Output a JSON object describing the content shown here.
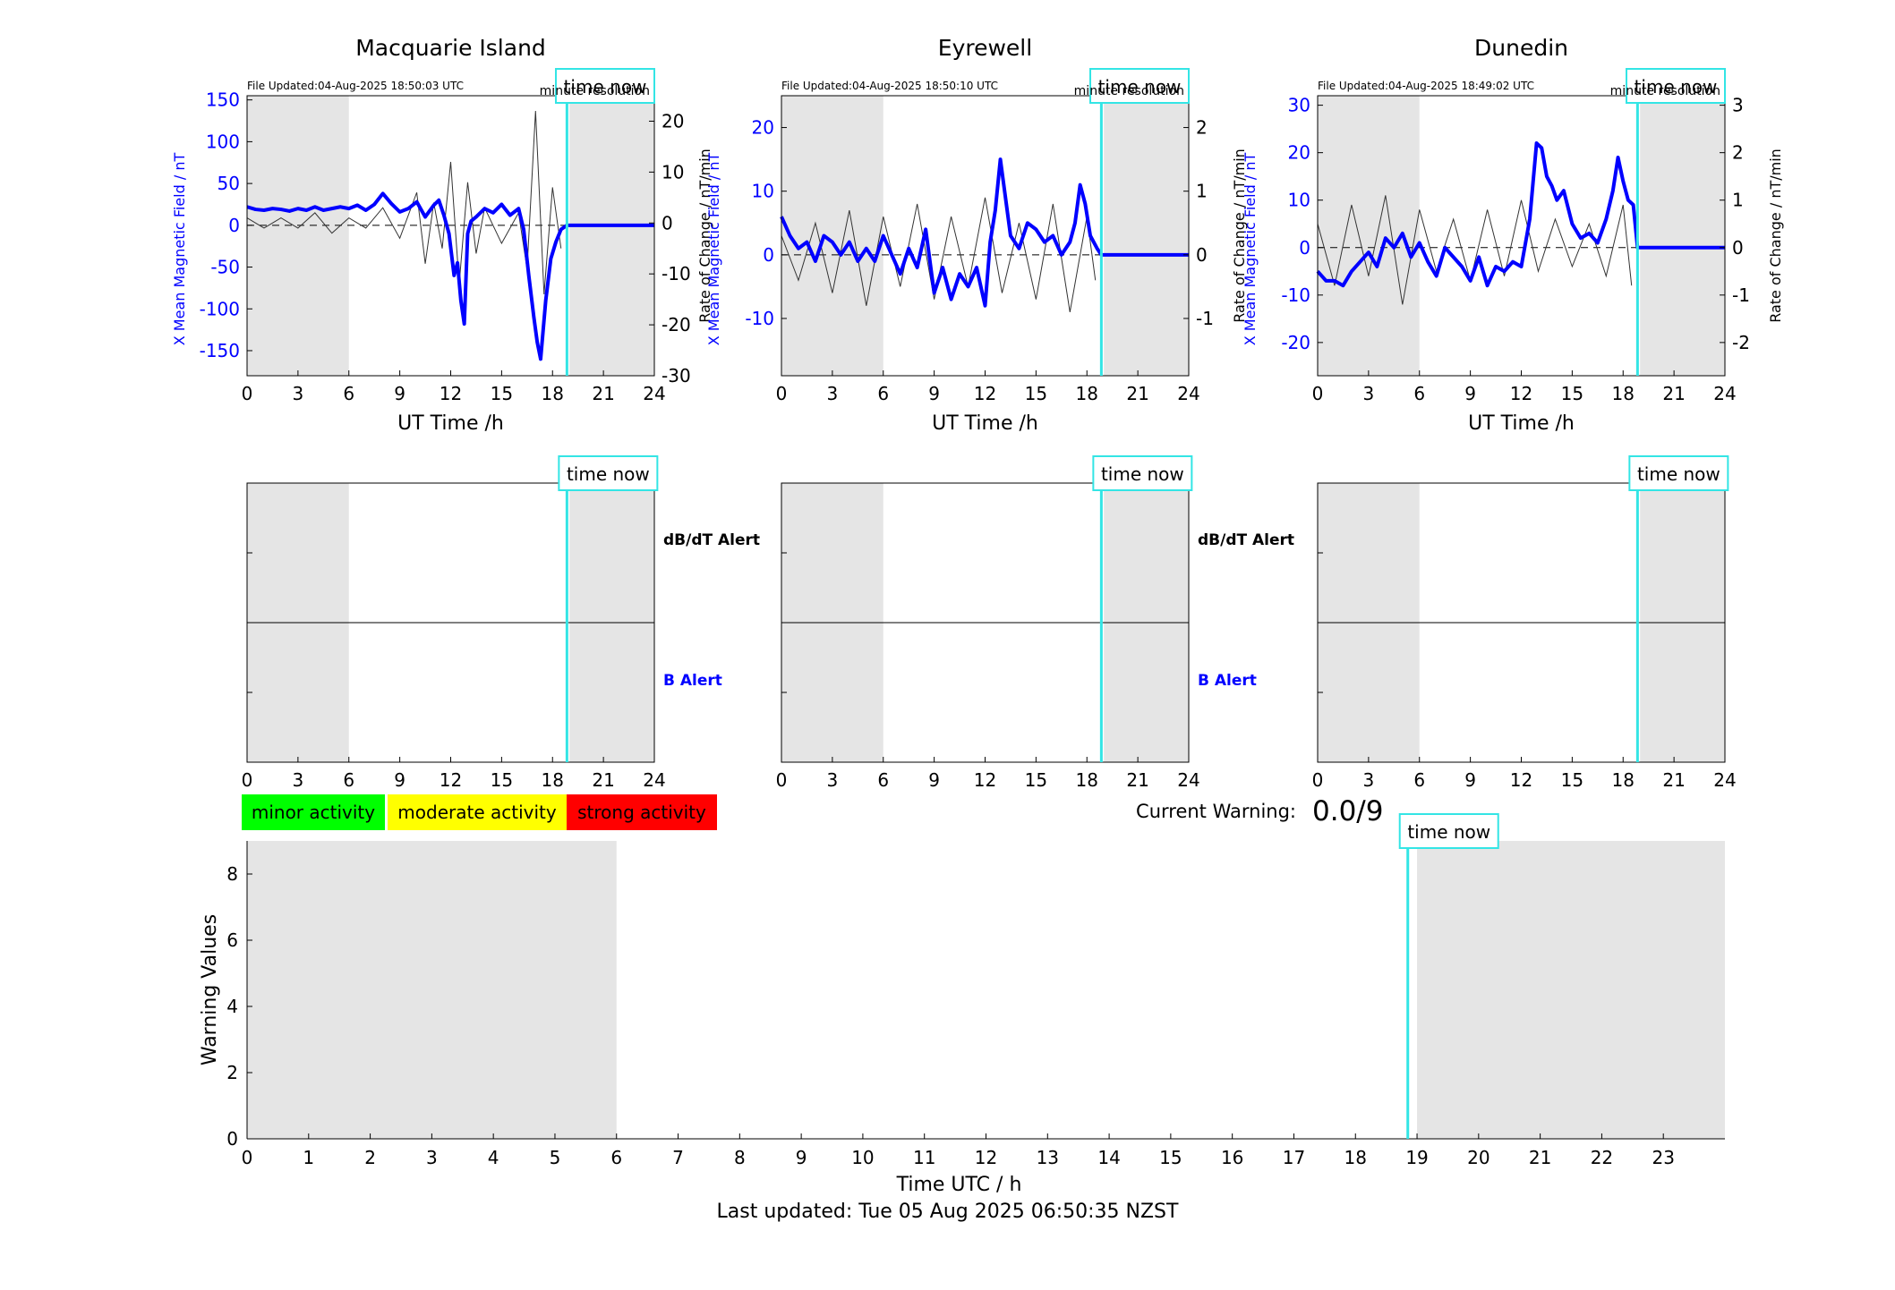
{
  "footer": {
    "last_updated": "Last updated: Tue 05 Aug 2025 06:50:35 NZST"
  },
  "colors": {
    "b_series": "#0000ff",
    "dbdt_series": "#333333",
    "now_line": "#33e5e5",
    "outside_window": "#e5e5e5",
    "minor": "#00ff00",
    "moderate": "#ffff00",
    "strong": "#ff0000"
  },
  "legend": {
    "minor": "minor activity",
    "moderate": "moderate activity",
    "strong": "strong activity"
  },
  "current_warning": {
    "label": "Current Warning:",
    "value": "0.0/9"
  },
  "time_now_label": "time now",
  "chart_data": [
    {
      "type": "line",
      "title": "Macquarie Island",
      "subtitle": "File Updated:04-Aug-2025 18:50:03 UTC",
      "note": "minute resolution",
      "xlabel": "UT Time /h",
      "ylabel": "X Mean Magnetic Field / nT",
      "y2label": "Rate of Change / nT/min",
      "xlim": [
        0,
        24
      ],
      "xticks": [
        0,
        3,
        6,
        9,
        12,
        15,
        18,
        21,
        24
      ],
      "ylim": [
        -180,
        155
      ],
      "yticks": [
        -150,
        -100,
        -50,
        0,
        50,
        100,
        150
      ],
      "y2lim": [
        -30,
        25
      ],
      "y2ticks": [
        -30,
        -20,
        -10,
        0,
        10,
        20
      ],
      "now_hour": 18.85,
      "shaded_before": 6,
      "shaded_after": 19,
      "series": [
        {
          "name": "X Mean Magnetic Field",
          "axis": "left",
          "x": [
            0,
            0.5,
            1,
            1.5,
            2,
            2.5,
            3,
            3.5,
            4,
            4.5,
            5,
            5.5,
            6,
            6.5,
            7,
            7.5,
            8,
            8.5,
            9,
            9.5,
            10,
            10.5,
            11,
            11.3,
            11.6,
            11.9,
            12.2,
            12.4,
            12.6,
            12.8,
            13.0,
            13.2,
            13.5,
            14,
            14.5,
            15,
            15.5,
            16,
            16.3,
            16.6,
            16.9,
            17.1,
            17.3,
            17.6,
            17.9,
            18.2,
            18.5,
            18.85,
            19,
            24
          ],
          "y": [
            22,
            19,
            18,
            20,
            19,
            17,
            20,
            18,
            22,
            18,
            20,
            22,
            20,
            24,
            18,
            25,
            38,
            26,
            16,
            20,
            28,
            10,
            24,
            30,
            12,
            -10,
            -60,
            -45,
            -90,
            -118,
            -10,
            5,
            10,
            20,
            15,
            25,
            12,
            20,
            -5,
            -60,
            -110,
            -140,
            -160,
            -90,
            -40,
            -20,
            -5,
            0,
            0,
            0
          ]
        },
        {
          "name": "Rate of Change",
          "axis": "right",
          "x": [
            0,
            1,
            2,
            3,
            4,
            5,
            6,
            7,
            8,
            9,
            10,
            10.5,
            11,
            11.5,
            12,
            12.5,
            13,
            13.5,
            14,
            15,
            16,
            16.5,
            17,
            17.5,
            18,
            18.5
          ],
          "y": [
            1,
            -1,
            1,
            -1,
            2,
            -2,
            1,
            -1,
            3,
            -3,
            6,
            -8,
            4,
            -5,
            12,
            -12,
            8,
            -6,
            3,
            -4,
            2,
            -9,
            22,
            -14,
            7,
            -5
          ]
        }
      ]
    },
    {
      "type": "line",
      "title": "Eyrewell",
      "subtitle": "File Updated:04-Aug-2025 18:50:10 UTC",
      "note": "minute resolution",
      "xlabel": "UT Time /h",
      "ylabel": "X Mean Magnetic Field / nT",
      "y2label": "Rate of Change / nT/min",
      "xlim": [
        0,
        24
      ],
      "xticks": [
        0,
        3,
        6,
        9,
        12,
        15,
        18,
        21,
        24
      ],
      "ylim": [
        -19,
        25
      ],
      "yticks": [
        -10,
        0,
        10,
        20
      ],
      "y2lim": [
        -1.9,
        2.5
      ],
      "y2ticks": [
        -1,
        0,
        1,
        2
      ],
      "now_hour": 18.85,
      "shaded_before": 6,
      "shaded_after": 19,
      "series": [
        {
          "name": "X Mean Magnetic Field",
          "axis": "left",
          "x": [
            0,
            0.5,
            1,
            1.5,
            2,
            2.5,
            3,
            3.5,
            4,
            4.5,
            5,
            5.5,
            6,
            6.5,
            7,
            7.5,
            8,
            8.5,
            9,
            9.5,
            10,
            10.5,
            11,
            11.5,
            12,
            12.3,
            12.6,
            12.9,
            13.2,
            13.5,
            14,
            14.5,
            15,
            15.5,
            16,
            16.5,
            17,
            17.3,
            17.6,
            17.9,
            18.2,
            18.6,
            18.85,
            19,
            24
          ],
          "y": [
            6,
            3,
            1,
            2,
            -1,
            3,
            2,
            0,
            2,
            -1,
            1,
            -1,
            3,
            0,
            -3,
            1,
            -2,
            4,
            -6,
            -2,
            -7,
            -3,
            -5,
            -2,
            -8,
            2,
            7,
            15,
            9,
            3,
            1,
            5,
            4,
            2,
            3,
            0,
            2,
            5,
            11,
            8,
            3,
            1,
            0,
            0,
            0
          ]
        },
        {
          "name": "Rate of Change",
          "axis": "right",
          "x": [
            0,
            1,
            2,
            3,
            4,
            5,
            6,
            7,
            8,
            9,
            10,
            11,
            12,
            13,
            14,
            15,
            16,
            17,
            18,
            18.5
          ],
          "y": [
            0.3,
            -0.4,
            0.5,
            -0.6,
            0.7,
            -0.8,
            0.6,
            -0.5,
            0.8,
            -0.7,
            0.6,
            -0.5,
            0.9,
            -0.6,
            0.5,
            -0.7,
            0.8,
            -0.9,
            0.6,
            -0.4
          ]
        }
      ]
    },
    {
      "type": "line",
      "title": "Dunedin",
      "subtitle": "File Updated:04-Aug-2025 18:49:02 UTC",
      "note": "minute resolution",
      "xlabel": "UT Time /h",
      "ylabel": "X Mean Magnetic Field / nT",
      "y2label": "Rate of Change / nT/min",
      "xlim": [
        0,
        24
      ],
      "xticks": [
        0,
        3,
        6,
        9,
        12,
        15,
        18,
        21,
        24
      ],
      "ylim": [
        -27,
        32
      ],
      "yticks": [
        -20,
        -10,
        0,
        10,
        20,
        30
      ],
      "y2lim": [
        -2.7,
        3.2
      ],
      "y2ticks": [
        -2,
        -1,
        0,
        1,
        2,
        3
      ],
      "now_hour": 18.85,
      "shaded_before": 6,
      "shaded_after": 19,
      "series": [
        {
          "name": "X Mean Magnetic Field",
          "axis": "left",
          "x": [
            0,
            0.5,
            1,
            1.5,
            2,
            2.5,
            3,
            3.5,
            4,
            4.5,
            5,
            5.5,
            6,
            6.5,
            7,
            7.5,
            8,
            8.5,
            9,
            9.5,
            10,
            10.5,
            11,
            11.5,
            12,
            12.5,
            12.9,
            13.2,
            13.5,
            13.8,
            14.1,
            14.5,
            15,
            15.5,
            16,
            16.5,
            17,
            17.4,
            17.7,
            18.0,
            18.3,
            18.6,
            18.85,
            19,
            24
          ],
          "y": [
            -5,
            -7,
            -7,
            -8,
            -5,
            -3,
            -1,
            -4,
            2,
            0,
            3,
            -2,
            1,
            -3,
            -6,
            0,
            -2,
            -4,
            -7,
            -2,
            -8,
            -4,
            -5,
            -3,
            -4,
            6,
            22,
            21,
            15,
            13,
            10,
            12,
            5,
            2,
            3,
            1,
            6,
            12,
            19,
            14,
            10,
            9,
            0,
            0,
            0
          ]
        },
        {
          "name": "Rate of Change",
          "axis": "right",
          "x": [
            0,
            1,
            2,
            3,
            4,
            5,
            6,
            7,
            8,
            9,
            10,
            11,
            12,
            13,
            14,
            15,
            16,
            17,
            18,
            18.5
          ],
          "y": [
            0.5,
            -0.8,
            0.9,
            -0.6,
            1.1,
            -1.2,
            0.8,
            -0.5,
            0.6,
            -0.7,
            0.8,
            -0.6,
            1.0,
            -0.5,
            0.6,
            -0.4,
            0.5,
            -0.6,
            0.9,
            -0.8
          ]
        }
      ]
    },
    {
      "type": "line",
      "title": "",
      "xlim": [
        0,
        24
      ],
      "xticks": [
        0,
        3,
        6,
        9,
        12,
        15,
        18,
        21,
        24
      ],
      "upper_label": "dB/dT Alert",
      "lower_label": "B Alert",
      "now_hour": 18.85,
      "shaded_before": 6,
      "shaded_after": 19
    },
    {
      "type": "line",
      "title": "",
      "xlim": [
        0,
        24
      ],
      "xticks": [
        0,
        3,
        6,
        9,
        12,
        15,
        18,
        21,
        24
      ],
      "upper_label": "dB/dT Alert",
      "lower_label": "B Alert",
      "now_hour": 18.85,
      "shaded_before": 6,
      "shaded_after": 19
    },
    {
      "type": "line",
      "title": "",
      "xlim": [
        0,
        24
      ],
      "xticks": [
        0,
        3,
        6,
        9,
        12,
        15,
        18,
        21,
        24
      ],
      "now_hour": 18.85,
      "shaded_before": 6,
      "shaded_after": 19
    },
    {
      "type": "bar",
      "title": "",
      "xlabel": "Time UTC / h",
      "ylabel": "Warning Values",
      "xlim": [
        0,
        24
      ],
      "xticks": [
        0,
        1,
        2,
        3,
        4,
        5,
        6,
        7,
        8,
        9,
        10,
        11,
        12,
        13,
        14,
        15,
        16,
        17,
        18,
        19,
        20,
        21,
        22,
        23
      ],
      "ylim": [
        0,
        9
      ],
      "yticks": [
        0,
        2,
        4,
        6,
        8
      ],
      "now_hour": 18.85,
      "shaded_before": 6,
      "shaded_after": 19,
      "values": []
    }
  ]
}
